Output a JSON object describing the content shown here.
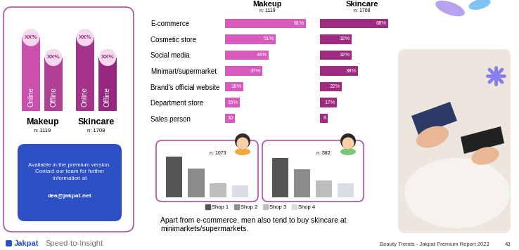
{
  "chart_data": [
    {
      "type": "bar",
      "title": "Makeup",
      "subtitle": "n: 1119",
      "categories": [
        "Online",
        "Offline"
      ],
      "values": [
        85,
        62
      ],
      "value_labels": [
        "XX%",
        "XX%"
      ],
      "colors": [
        "#cc4fae",
        "#b23f96"
      ],
      "ylim": [
        0,
        100
      ],
      "tick_labels": false,
      "data_labels": true
    },
    {
      "type": "bar",
      "title": "Skincare",
      "subtitle": "n: 1708",
      "categories": [
        "Online",
        "Offline"
      ],
      "values": [
        85,
        62
      ],
      "value_labels": [
        "XX%",
        "XX%"
      ],
      "colors": [
        "#a3348a",
        "#93287c"
      ],
      "ylim": [
        0,
        100
      ],
      "tick_labels": false,
      "data_labels": true
    },
    {
      "type": "bar",
      "orientation": "horizontal",
      "categories": [
        "E-commerce",
        "Cosmetic store",
        "Social media",
        "Minimart/supermarket",
        "Brand's official website",
        "Department store",
        "Sales person"
      ],
      "series": [
        {
          "name": "Makeup",
          "subtitle": "n: 1119",
          "color": "#d65bbd",
          "values": [
            81,
            51,
            44,
            37,
            18,
            15,
            10
          ],
          "value_labels": [
            "81%",
            "51%",
            "44%",
            "37%",
            "18%",
            "15%",
            "10"
          ]
        },
        {
          "name": "Skincare",
          "subtitle": "n: 1708",
          "color": "#9e2a82",
          "values": [
            68,
            32,
            32,
            38,
            22,
            17,
            8
          ],
          "value_labels": [
            "68%",
            "32%",
            "32%",
            "38%",
            "22%",
            "17%",
            "8"
          ]
        }
      ],
      "xlim": [
        0,
        100
      ],
      "tick_labels": "y",
      "data_labels": true
    },
    {
      "type": "bar",
      "title": "n: 1073",
      "categories": [
        "Shop 1",
        "Shop 2",
        "Shop 3",
        "Shop 4"
      ],
      "values": [
        60,
        42,
        21,
        17
      ],
      "colors": [
        "#555555",
        "#8c8c8c",
        "#bdbdbd",
        "#d9dde3"
      ],
      "ylim": [
        0,
        70
      ],
      "tick_labels": false,
      "legend": "lower center"
    },
    {
      "type": "bar",
      "title": "n: 582",
      "categories": [
        "Shop 1",
        "Shop 2",
        "Shop 3",
        "Shop 4"
      ],
      "values": [
        58,
        41,
        25,
        21
      ],
      "colors": [
        "#555555",
        "#8c8c8c",
        "#bdbdbd",
        "#d9dde3"
      ],
      "ylim": [
        0,
        70
      ],
      "tick_labels": false
    }
  ],
  "premium_note": {
    "lines": [
      "Available in the premium version.",
      "Contact our team for further",
      "information at"
    ],
    "email": "dea@jakpat.net"
  },
  "caption": [
    "Apart from e-commerce, men also tend to buy skincare at",
    "minimarkets/supermarkets."
  ],
  "footer": {
    "brand": "Jakpat",
    "tagline": "Speed-to-Insight",
    "report": "Beauty Trends - Jakpat Premium Report 2023",
    "page": "43"
  }
}
